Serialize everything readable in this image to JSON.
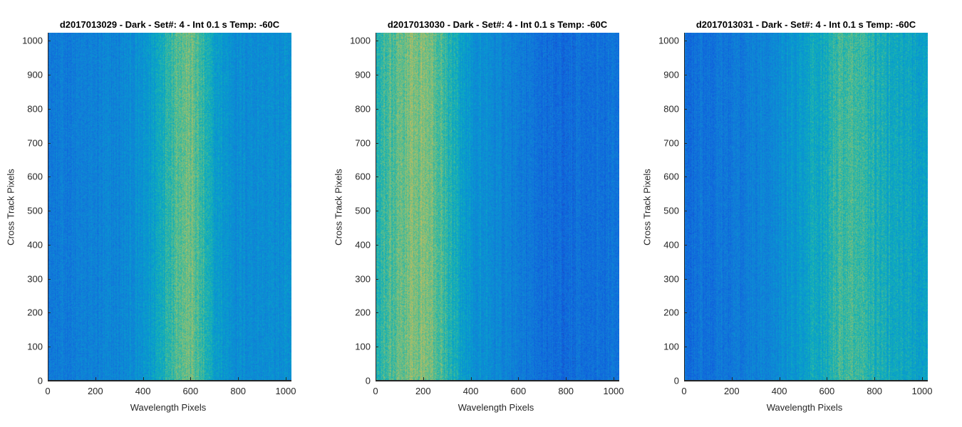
{
  "chart_data": [
    {
      "type": "heatmap",
      "title": "d2017013029 - Dark - Set#: 4 - Int 0.1 s Temp: -60C",
      "xlabel": "Wavelength Pixels",
      "ylabel": "Cross Track Pixels",
      "xlim": [
        0,
        1024
      ],
      "ylim": [
        0,
        1024
      ],
      "xticks": [
        0,
        200,
        400,
        600,
        800,
        1000
      ],
      "yticks": [
        0,
        100,
        200,
        300,
        400,
        500,
        600,
        700,
        800,
        900,
        1000
      ],
      "column_profile": {
        "x": [
          0,
          100,
          200,
          300,
          400,
          450,
          500,
          550,
          600,
          650,
          700,
          800,
          900,
          1024
        ],
        "relative_level": [
          0.28,
          0.3,
          0.32,
          0.34,
          0.4,
          0.48,
          0.58,
          0.66,
          0.68,
          0.58,
          0.46,
          0.38,
          0.38,
          0.38
        ]
      },
      "colormap": "parula"
    },
    {
      "type": "heatmap",
      "title": "d2017013030 - Dark - Set#: 4 - Int 0.1 s Temp: -60C",
      "xlabel": "Wavelength Pixels",
      "ylabel": "Cross Track Pixels",
      "xlim": [
        0,
        1024
      ],
      "ylim": [
        0,
        1024
      ],
      "xticks": [
        0,
        200,
        400,
        600,
        800,
        1000
      ],
      "yticks": [
        0,
        100,
        200,
        300,
        400,
        500,
        600,
        700,
        800,
        900,
        1000
      ],
      "column_profile": {
        "x": [
          0,
          100,
          150,
          200,
          250,
          300,
          350,
          400,
          500,
          600,
          700,
          800,
          900,
          1024
        ],
        "relative_level": [
          0.55,
          0.66,
          0.7,
          0.7,
          0.66,
          0.58,
          0.48,
          0.42,
          0.36,
          0.3,
          0.24,
          0.22,
          0.24,
          0.28
        ]
      },
      "colormap": "parula"
    },
    {
      "type": "heatmap",
      "title": "d2017013031 - Dark - Set#: 4 - Int 0.1 s Temp: -60C",
      "xlabel": "Wavelength Pixels",
      "ylabel": "Cross Track Pixels",
      "xlim": [
        0,
        1024
      ],
      "ylim": [
        0,
        1024
      ],
      "xticks": [
        0,
        200,
        400,
        600,
        800,
        1000
      ],
      "yticks": [
        0,
        100,
        200,
        300,
        400,
        500,
        600,
        700,
        800,
        900,
        1000
      ],
      "column_profile": {
        "x": [
          0,
          100,
          200,
          300,
          400,
          500,
          600,
          650,
          700,
          750,
          800,
          900,
          1024
        ],
        "relative_level": [
          0.24,
          0.26,
          0.28,
          0.32,
          0.38,
          0.46,
          0.54,
          0.6,
          0.62,
          0.58,
          0.54,
          0.5,
          0.48
        ]
      },
      "colormap": "parula"
    }
  ]
}
